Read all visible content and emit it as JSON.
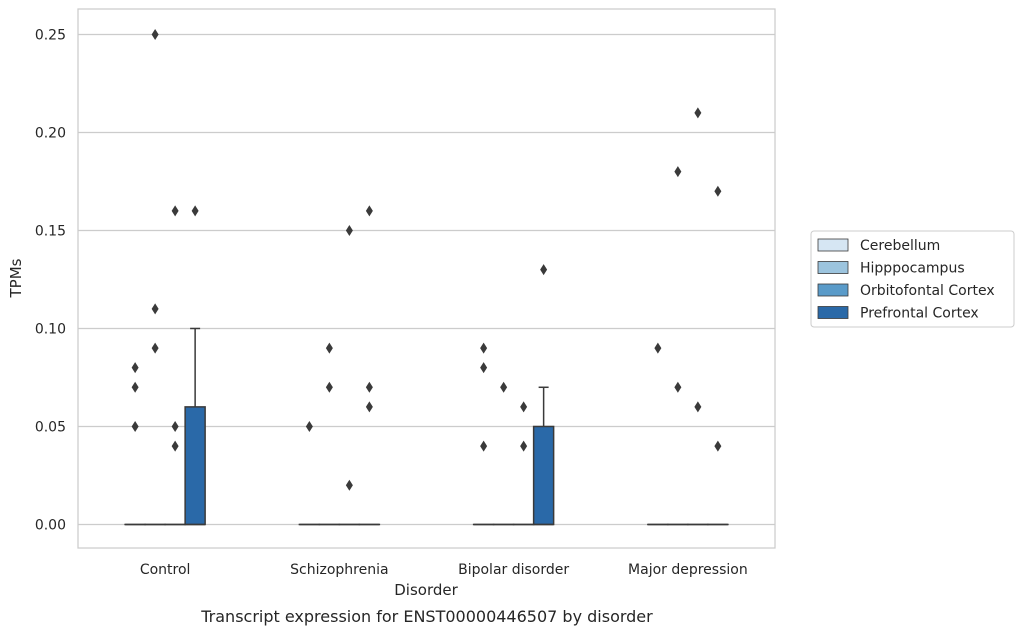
{
  "chart_data": {
    "type": "box",
    "caption": "Transcript expression for ENST00000446507 by disorder",
    "xlabel": "Disorder",
    "ylabel": "TPMs",
    "ylim": [
      -0.012,
      0.263
    ],
    "yticks": [
      0.0,
      0.05,
      0.1,
      0.15,
      0.2,
      0.25
    ],
    "ytick_labels": [
      "0.00",
      "0.05",
      "0.10",
      "0.15",
      "0.20",
      "0.25"
    ],
    "grid": "horizontal",
    "legend_position": "right",
    "categories": [
      "Control",
      "Schizophrenia",
      "Bipolar disorder",
      "Major depression"
    ],
    "series": [
      {
        "name": "Cerebellum",
        "color": "#d6e6f3",
        "boxes": [
          {
            "min": 0,
            "q1": 0,
            "median": 0,
            "q3": 0,
            "max": 0,
            "outliers": [
              0.08,
              0.07,
              0.05
            ]
          },
          {
            "min": 0,
            "q1": 0,
            "median": 0,
            "q3": 0,
            "max": 0,
            "outliers": [
              0.05
            ]
          },
          {
            "min": 0,
            "q1": 0,
            "median": 0,
            "q3": 0,
            "max": 0,
            "outliers": [
              0.09,
              0.08,
              0.04
            ]
          },
          {
            "min": 0,
            "q1": 0,
            "median": 0,
            "q3": 0,
            "max": 0,
            "outliers": [
              0.09
            ]
          }
        ]
      },
      {
        "name": "Hipppocampus",
        "color": "#9cc4de",
        "boxes": [
          {
            "min": 0,
            "q1": 0,
            "median": 0,
            "q3": 0,
            "max": 0,
            "outliers": [
              0.25,
              0.11,
              0.09
            ]
          },
          {
            "min": 0,
            "q1": 0,
            "median": 0,
            "q3": 0,
            "max": 0,
            "outliers": [
              0.09,
              0.07
            ]
          },
          {
            "min": 0,
            "q1": 0,
            "median": 0,
            "q3": 0,
            "max": 0,
            "outliers": [
              0.07
            ]
          },
          {
            "min": 0,
            "q1": 0,
            "median": 0,
            "q3": 0,
            "max": 0,
            "outliers": [
              0.18,
              0.07
            ]
          }
        ]
      },
      {
        "name": "Orbitofontal Cortex",
        "color": "#5a9bc9",
        "boxes": [
          {
            "min": 0,
            "q1": 0,
            "median": 0,
            "q3": 0,
            "max": 0,
            "outliers": [
              0.16,
              0.05,
              0.04
            ]
          },
          {
            "min": 0,
            "q1": 0,
            "median": 0,
            "q3": 0,
            "max": 0,
            "outliers": [
              0.15,
              0.02
            ]
          },
          {
            "min": 0,
            "q1": 0,
            "median": 0,
            "q3": 0,
            "max": 0,
            "outliers": [
              0.06,
              0.04
            ]
          },
          {
            "min": 0,
            "q1": 0,
            "median": 0,
            "q3": 0,
            "max": 0,
            "outliers": [
              0.21,
              0.06
            ]
          }
        ]
      },
      {
        "name": "Prefrontal Cortex",
        "color": "#2a69a8",
        "boxes": [
          {
            "min": 0,
            "q1": 0,
            "median": 0,
            "q3": 0.06,
            "max": 0.1,
            "outliers": [
              0.16
            ]
          },
          {
            "min": 0,
            "q1": 0,
            "median": 0,
            "q3": 0,
            "max": 0,
            "outliers": [
              0.16,
              0.07,
              0.06
            ]
          },
          {
            "min": 0,
            "q1": 0,
            "median": 0,
            "q3": 0.05,
            "max": 0.07,
            "outliers": [
              0.13
            ]
          },
          {
            "min": 0,
            "q1": 0,
            "median": 0,
            "q3": 0,
            "max": 0,
            "outliers": [
              0.17,
              0.04
            ]
          }
        ]
      }
    ]
  }
}
